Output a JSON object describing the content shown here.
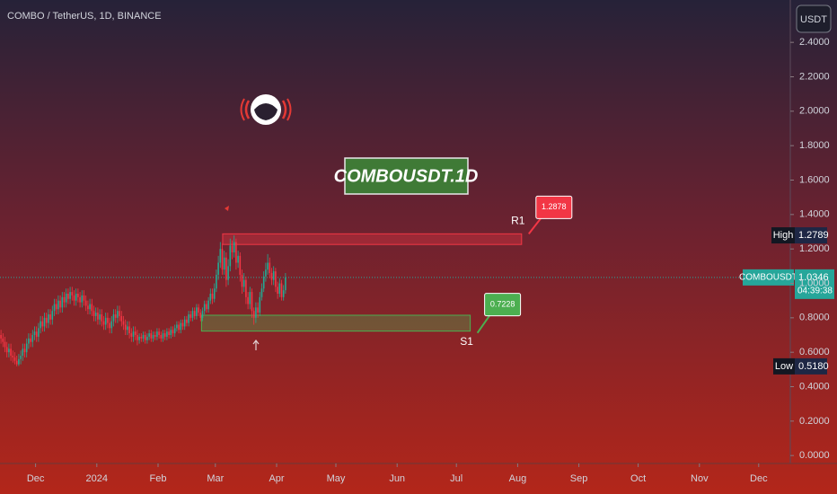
{
  "chart_data": {
    "type": "candlestick",
    "title": "COMBO / TetherUS, 1D, BINANCE",
    "currency": "USDT",
    "watermark": "COMBOUSDT.1D",
    "up_color": "#22ab94",
    "down_color": "#f23645",
    "xlim": [
      0,
      400
    ],
    "xticks": [
      {
        "value": 18,
        "label": "Dec"
      },
      {
        "value": 49,
        "label": "2024"
      },
      {
        "value": 80,
        "label": "Feb"
      },
      {
        "value": 109,
        "label": "Mar"
      },
      {
        "value": 140,
        "label": "Apr"
      },
      {
        "value": 170,
        "label": "May"
      },
      {
        "value": 201,
        "label": "Jun"
      },
      {
        "value": 231,
        "label": "Jul"
      },
      {
        "value": 262,
        "label": "Aug"
      },
      {
        "value": 293,
        "label": "Sep"
      },
      {
        "value": 323,
        "label": "Oct"
      },
      {
        "value": 354,
        "label": "Nov"
      },
      {
        "value": 384,
        "label": "Dec"
      }
    ],
    "ylim": [
      -0.046,
      2.646
    ],
    "yticks": [
      {
        "value": 0,
        "label": "0.0000"
      },
      {
        "value": 0.2,
        "label": "0.2000"
      },
      {
        "value": 0.4,
        "label": "0.4000"
      },
      {
        "value": 0.6,
        "label": "0.6000"
      },
      {
        "value": 0.8,
        "label": "0.8000"
      },
      {
        "value": 1.0,
        "label": "1.0000"
      },
      {
        "value": 1.2,
        "label": "1.2000"
      },
      {
        "value": 1.4,
        "label": "1.4000"
      },
      {
        "value": 1.6,
        "label": "1.6000"
      },
      {
        "value": 1.8,
        "label": "1.8000"
      },
      {
        "value": 2.0,
        "label": "2.0000"
      },
      {
        "value": 2.2,
        "label": "2.2000"
      },
      {
        "value": 2.4,
        "label": "2.4000"
      }
    ],
    "zones": [
      {
        "name": "R1",
        "top": 1.2878,
        "bottom": 1.226,
        "start": 112.7,
        "end": 264,
        "color": "#f23645"
      },
      {
        "name": "S1",
        "top": 0.815,
        "bottom": 0.7228,
        "start": 102,
        "end": 238,
        "color": "#4caf50"
      }
    ],
    "high": {
      "label": "High",
      "value": 1.2789
    },
    "low": {
      "label": "Low",
      "value": 0.518,
      "value_label": "0.5180"
    },
    "last": {
      "label": "COMBOUSDT",
      "value": 1.0346,
      "countdown": "04:39:38"
    },
    "ohlc": [
      [
        0.7,
        0.73,
        0.65,
        0.68
      ],
      [
        0.68,
        0.71,
        0.63,
        0.66
      ],
      [
        0.66,
        0.69,
        0.6,
        0.63
      ],
      [
        0.63,
        0.66,
        0.57,
        0.6
      ],
      [
        0.6,
        0.65,
        0.57,
        0.62
      ],
      [
        0.62,
        0.65,
        0.55,
        0.58
      ],
      [
        0.58,
        0.61,
        0.54,
        0.57
      ],
      [
        0.57,
        0.6,
        0.53,
        0.55
      ],
      [
        0.55,
        0.58,
        0.518,
        0.53
      ],
      [
        0.53,
        0.59,
        0.52,
        0.56
      ],
      [
        0.56,
        0.61,
        0.53,
        0.58
      ],
      [
        0.58,
        0.65,
        0.55,
        0.62
      ],
      [
        0.62,
        0.65,
        0.57,
        0.6
      ],
      [
        0.6,
        0.68,
        0.57,
        0.65
      ],
      [
        0.65,
        0.71,
        0.62,
        0.68
      ],
      [
        0.68,
        0.71,
        0.63,
        0.66
      ],
      [
        0.66,
        0.73,
        0.63,
        0.7
      ],
      [
        0.7,
        0.75,
        0.67,
        0.72
      ],
      [
        0.72,
        0.75,
        0.66,
        0.69
      ],
      [
        0.69,
        0.77,
        0.66,
        0.74
      ],
      [
        0.74,
        0.81,
        0.71,
        0.78
      ],
      [
        0.78,
        0.81,
        0.72,
        0.75
      ],
      [
        0.75,
        0.83,
        0.72,
        0.8
      ],
      [
        0.8,
        0.83,
        0.74,
        0.77
      ],
      [
        0.77,
        0.85,
        0.74,
        0.82
      ],
      [
        0.82,
        0.85,
        0.76,
        0.79
      ],
      [
        0.79,
        0.87,
        0.76,
        0.84
      ],
      [
        0.84,
        0.91,
        0.81,
        0.88
      ],
      [
        0.88,
        0.91,
        0.82,
        0.85
      ],
      [
        0.85,
        0.93,
        0.82,
        0.9
      ],
      [
        0.9,
        0.93,
        0.83,
        0.86
      ],
      [
        0.86,
        0.95,
        0.83,
        0.92
      ],
      [
        0.92,
        0.95,
        0.86,
        0.89
      ],
      [
        0.89,
        0.97,
        0.86,
        0.94
      ],
      [
        0.94,
        0.97,
        0.88,
        0.91
      ],
      [
        0.91,
        0.98,
        0.88,
        0.95
      ],
      [
        0.95,
        0.98,
        0.9,
        0.93
      ],
      [
        0.93,
        0.96,
        0.87,
        0.9
      ],
      [
        0.9,
        0.97,
        0.87,
        0.94
      ],
      [
        0.94,
        0.97,
        0.89,
        0.92
      ],
      [
        0.92,
        0.95,
        0.86,
        0.89
      ],
      [
        0.89,
        0.96,
        0.86,
        0.93
      ],
      [
        0.93,
        0.96,
        0.87,
        0.9
      ],
      [
        0.9,
        0.93,
        0.84,
        0.87
      ],
      [
        0.87,
        0.9,
        0.82,
        0.85
      ],
      [
        0.85,
        0.91,
        0.82,
        0.88
      ],
      [
        0.88,
        0.91,
        0.81,
        0.84
      ],
      [
        0.84,
        0.87,
        0.78,
        0.81
      ],
      [
        0.81,
        0.86,
        0.78,
        0.83
      ],
      [
        0.83,
        0.86,
        0.76,
        0.79
      ],
      [
        0.79,
        0.85,
        0.76,
        0.82
      ],
      [
        0.82,
        0.85,
        0.75,
        0.78
      ],
      [
        0.78,
        0.81,
        0.73,
        0.76
      ],
      [
        0.76,
        0.83,
        0.73,
        0.8
      ],
      [
        0.8,
        0.83,
        0.74,
        0.77
      ],
      [
        0.77,
        0.8,
        0.71,
        0.74
      ],
      [
        0.74,
        0.81,
        0.71,
        0.78
      ],
      [
        0.78,
        0.85,
        0.75,
        0.82
      ],
      [
        0.82,
        0.85,
        0.77,
        0.8
      ],
      [
        0.8,
        0.87,
        0.77,
        0.84
      ],
      [
        0.84,
        0.87,
        0.78,
        0.81
      ],
      [
        0.81,
        0.84,
        0.75,
        0.78
      ],
      [
        0.78,
        0.81,
        0.73,
        0.76
      ],
      [
        0.76,
        0.79,
        0.7,
        0.73
      ],
      [
        0.73,
        0.78,
        0.7,
        0.75
      ],
      [
        0.75,
        0.78,
        0.68,
        0.71
      ],
      [
        0.71,
        0.74,
        0.66,
        0.69
      ],
      [
        0.69,
        0.75,
        0.66,
        0.72
      ],
      [
        0.72,
        0.75,
        0.67,
        0.7
      ],
      [
        0.7,
        0.73,
        0.64,
        0.67
      ],
      [
        0.67,
        0.71,
        0.65,
        0.69
      ],
      [
        0.69,
        0.71,
        0.66,
        0.68
      ],
      [
        0.68,
        0.72,
        0.66,
        0.7
      ],
      [
        0.7,
        0.72,
        0.65,
        0.67
      ],
      [
        0.67,
        0.71,
        0.65,
        0.69
      ],
      [
        0.69,
        0.73,
        0.67,
        0.71
      ],
      [
        0.71,
        0.73,
        0.66,
        0.68
      ],
      [
        0.68,
        0.72,
        0.66,
        0.7
      ],
      [
        0.7,
        0.72,
        0.67,
        0.69
      ],
      [
        0.69,
        0.74,
        0.67,
        0.72
      ],
      [
        0.72,
        0.74,
        0.68,
        0.7
      ],
      [
        0.7,
        0.72,
        0.66,
        0.68
      ],
      [
        0.68,
        0.73,
        0.66,
        0.71
      ],
      [
        0.71,
        0.73,
        0.67,
        0.69
      ],
      [
        0.69,
        0.74,
        0.67,
        0.72
      ],
      [
        0.72,
        0.74,
        0.68,
        0.7
      ],
      [
        0.7,
        0.75,
        0.68,
        0.73
      ],
      [
        0.73,
        0.75,
        0.69,
        0.71
      ],
      [
        0.71,
        0.76,
        0.69,
        0.74
      ],
      [
        0.74,
        0.78,
        0.72,
        0.76
      ],
      [
        0.76,
        0.78,
        0.71,
        0.73
      ],
      [
        0.73,
        0.79,
        0.71,
        0.77
      ],
      [
        0.77,
        0.79,
        0.73,
        0.75
      ],
      [
        0.75,
        0.81,
        0.73,
        0.79
      ],
      [
        0.79,
        0.81,
        0.75,
        0.77
      ],
      [
        0.77,
        0.84,
        0.75,
        0.82
      ],
      [
        0.82,
        0.84,
        0.78,
        0.8
      ],
      [
        0.8,
        0.86,
        0.78,
        0.84
      ],
      [
        0.84,
        0.86,
        0.79,
        0.81
      ],
      [
        0.81,
        0.88,
        0.79,
        0.86
      ],
      [
        0.86,
        0.88,
        0.81,
        0.83
      ],
      [
        0.83,
        0.85,
        0.78,
        0.8
      ],
      [
        0.8,
        0.86,
        0.78,
        0.84
      ],
      [
        0.84,
        0.9,
        0.82,
        0.88
      ],
      [
        0.88,
        0.9,
        0.83,
        0.85
      ],
      [
        0.85,
        0.92,
        0.83,
        0.9
      ],
      [
        0.9,
        0.97,
        0.88,
        0.94
      ],
      [
        0.94,
        0.97,
        0.88,
        0.91
      ],
      [
        0.91,
        1.0,
        0.89,
        0.97
      ],
      [
        0.97,
        1.08,
        0.95,
        1.05
      ],
      [
        1.05,
        1.16,
        1.02,
        1.12
      ],
      [
        1.12,
        1.24,
        1.09,
        1.2
      ],
      [
        1.2,
        1.23,
        1.05,
        1.08
      ],
      [
        1.08,
        1.19,
        1.05,
        1.15
      ],
      [
        1.15,
        1.18,
        0.98,
        1.02
      ],
      [
        1.02,
        1.14,
        0.99,
        1.1
      ],
      [
        1.1,
        1.26,
        1.07,
        1.22
      ],
      [
        1.22,
        1.25,
        1.14,
        1.18
      ],
      [
        1.18,
        1.2789,
        1.15,
        1.24
      ],
      [
        1.24,
        1.26,
        1.08,
        1.12
      ],
      [
        1.12,
        1.19,
        1.09,
        1.16
      ],
      [
        1.16,
        1.18,
        1.01,
        1.05
      ],
      [
        1.05,
        1.08,
        0.94,
        0.98
      ],
      [
        0.98,
        1.06,
        0.95,
        1.02
      ],
      [
        1.02,
        1.04,
        0.88,
        0.92
      ],
      [
        0.92,
        0.95,
        0.85,
        0.88
      ],
      [
        0.88,
        0.98,
        0.85,
        0.95
      ],
      [
        0.95,
        0.97,
        0.8,
        0.84
      ],
      [
        0.84,
        0.86,
        0.76,
        0.8
      ],
      [
        0.8,
        0.89,
        0.77,
        0.86
      ],
      [
        0.86,
        0.89,
        0.8,
        0.83
      ],
      [
        0.83,
        0.95,
        0.81,
        0.92
      ],
      [
        0.92,
        1.0,
        0.9,
        0.97
      ],
      [
        0.97,
        1.07,
        0.95,
        1.04
      ],
      [
        1.04,
        1.12,
        1.01,
        1.08
      ],
      [
        1.08,
        1.17,
        1.05,
        1.12
      ],
      [
        1.12,
        1.15,
        1.03,
        1.06
      ],
      [
        1.06,
        1.09,
        0.99,
        1.02
      ],
      [
        1.02,
        1.1,
        0.99,
        1.07
      ],
      [
        1.07,
        1.09,
        0.95,
        0.98
      ],
      [
        0.98,
        1.01,
        0.91,
        0.94
      ],
      [
        0.94,
        1.03,
        0.92,
        1.0
      ],
      [
        1.0,
        1.02,
        0.9,
        0.92
      ],
      [
        0.92,
        0.99,
        0.9,
        0.96
      ],
      [
        0.96,
        1.06,
        0.94,
        1.0346
      ]
    ]
  }
}
